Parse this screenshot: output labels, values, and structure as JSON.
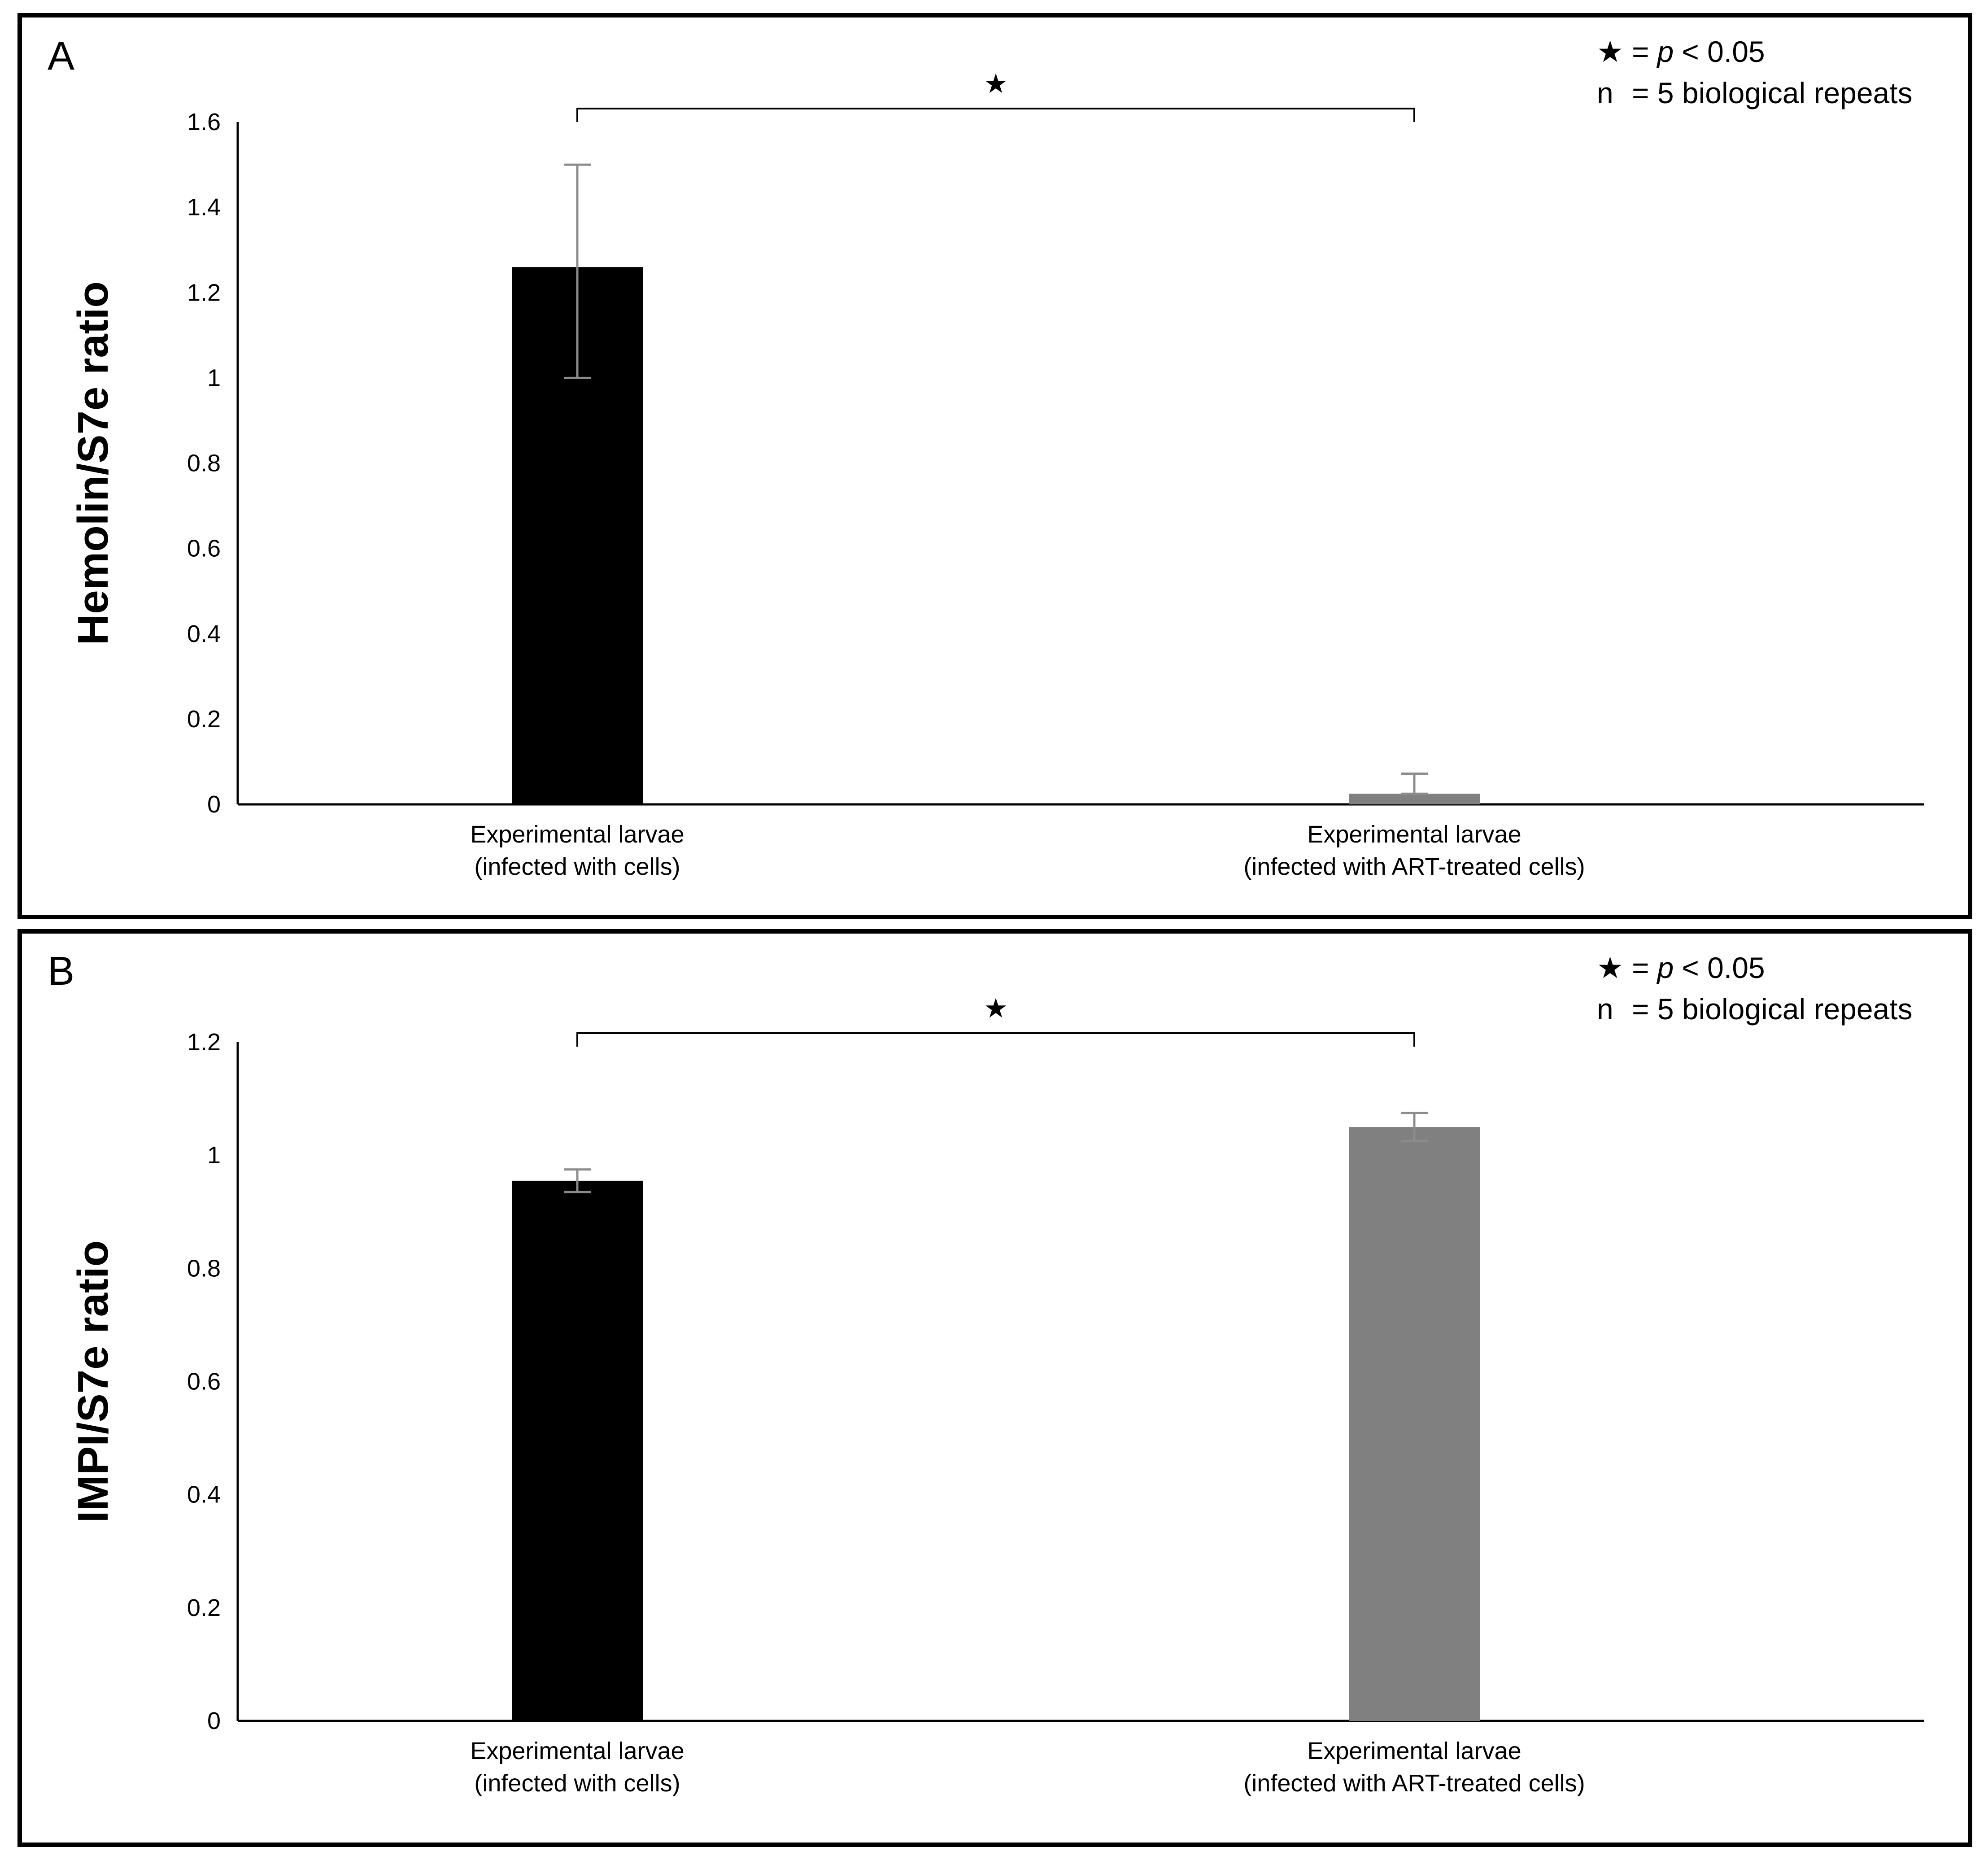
{
  "chart_data": [
    {
      "panel_label": "A",
      "type": "bar",
      "ylabel": "Hemolin/S7e ratio",
      "xlabel": "",
      "ylim": [
        0,
        1.6
      ],
      "yticks": [
        "0",
        "0.2",
        "0.4",
        "0.6",
        "0.8",
        "1",
        "1.2",
        "1.4",
        "1.6"
      ],
      "categories": [
        {
          "line1": "Experimental larvae",
          "line2": "(infected with cells)"
        },
        {
          "line1": "Experimental larvae",
          "line2": "(infected with ART-treated cells)"
        }
      ],
      "values": [
        1.26,
        0.025
      ],
      "error_upper": [
        1.5,
        0.072
      ],
      "error_lower": [
        1.0,
        0.025
      ],
      "bar_colors": [
        "#000000",
        "#808080"
      ],
      "error_color": "#8c8c8c",
      "significance": {
        "symbol": "★",
        "between": [
          0,
          1
        ]
      },
      "legend": {
        "line1": {
          "symbol": "★",
          "eq": "=",
          "p": "p",
          "rest": "< 0.05"
        },
        "line2": {
          "symbol": "n",
          "text": "= 5 biological repeats"
        }
      }
    },
    {
      "panel_label": "B",
      "type": "bar",
      "ylabel": "IMPI/S7e ratio",
      "xlabel": "",
      "ylim": [
        0,
        1.2
      ],
      "yticks": [
        "0",
        "0.2",
        "0.4",
        "0.6",
        "0.8",
        "1",
        "1.2"
      ],
      "categories": [
        {
          "line1": "Experimental larvae",
          "line2": "(infected with cells)"
        },
        {
          "line1": "Experimental larvae",
          "line2": "(infected with ART-treated cells)"
        }
      ],
      "values": [
        0.955,
        1.05
      ],
      "error_upper": [
        0.975,
        1.075
      ],
      "error_lower": [
        0.935,
        1.025
      ],
      "bar_colors": [
        "#000000",
        "#808080"
      ],
      "error_color": "#8c8c8c",
      "significance": {
        "symbol": "★",
        "between": [
          0,
          1
        ]
      },
      "legend": {
        "line1": {
          "symbol": "★",
          "eq": "=",
          "p": "p",
          "rest": "< 0.05"
        },
        "line2": {
          "symbol": "n",
          "text": "= 5 biological repeats"
        }
      }
    }
  ]
}
